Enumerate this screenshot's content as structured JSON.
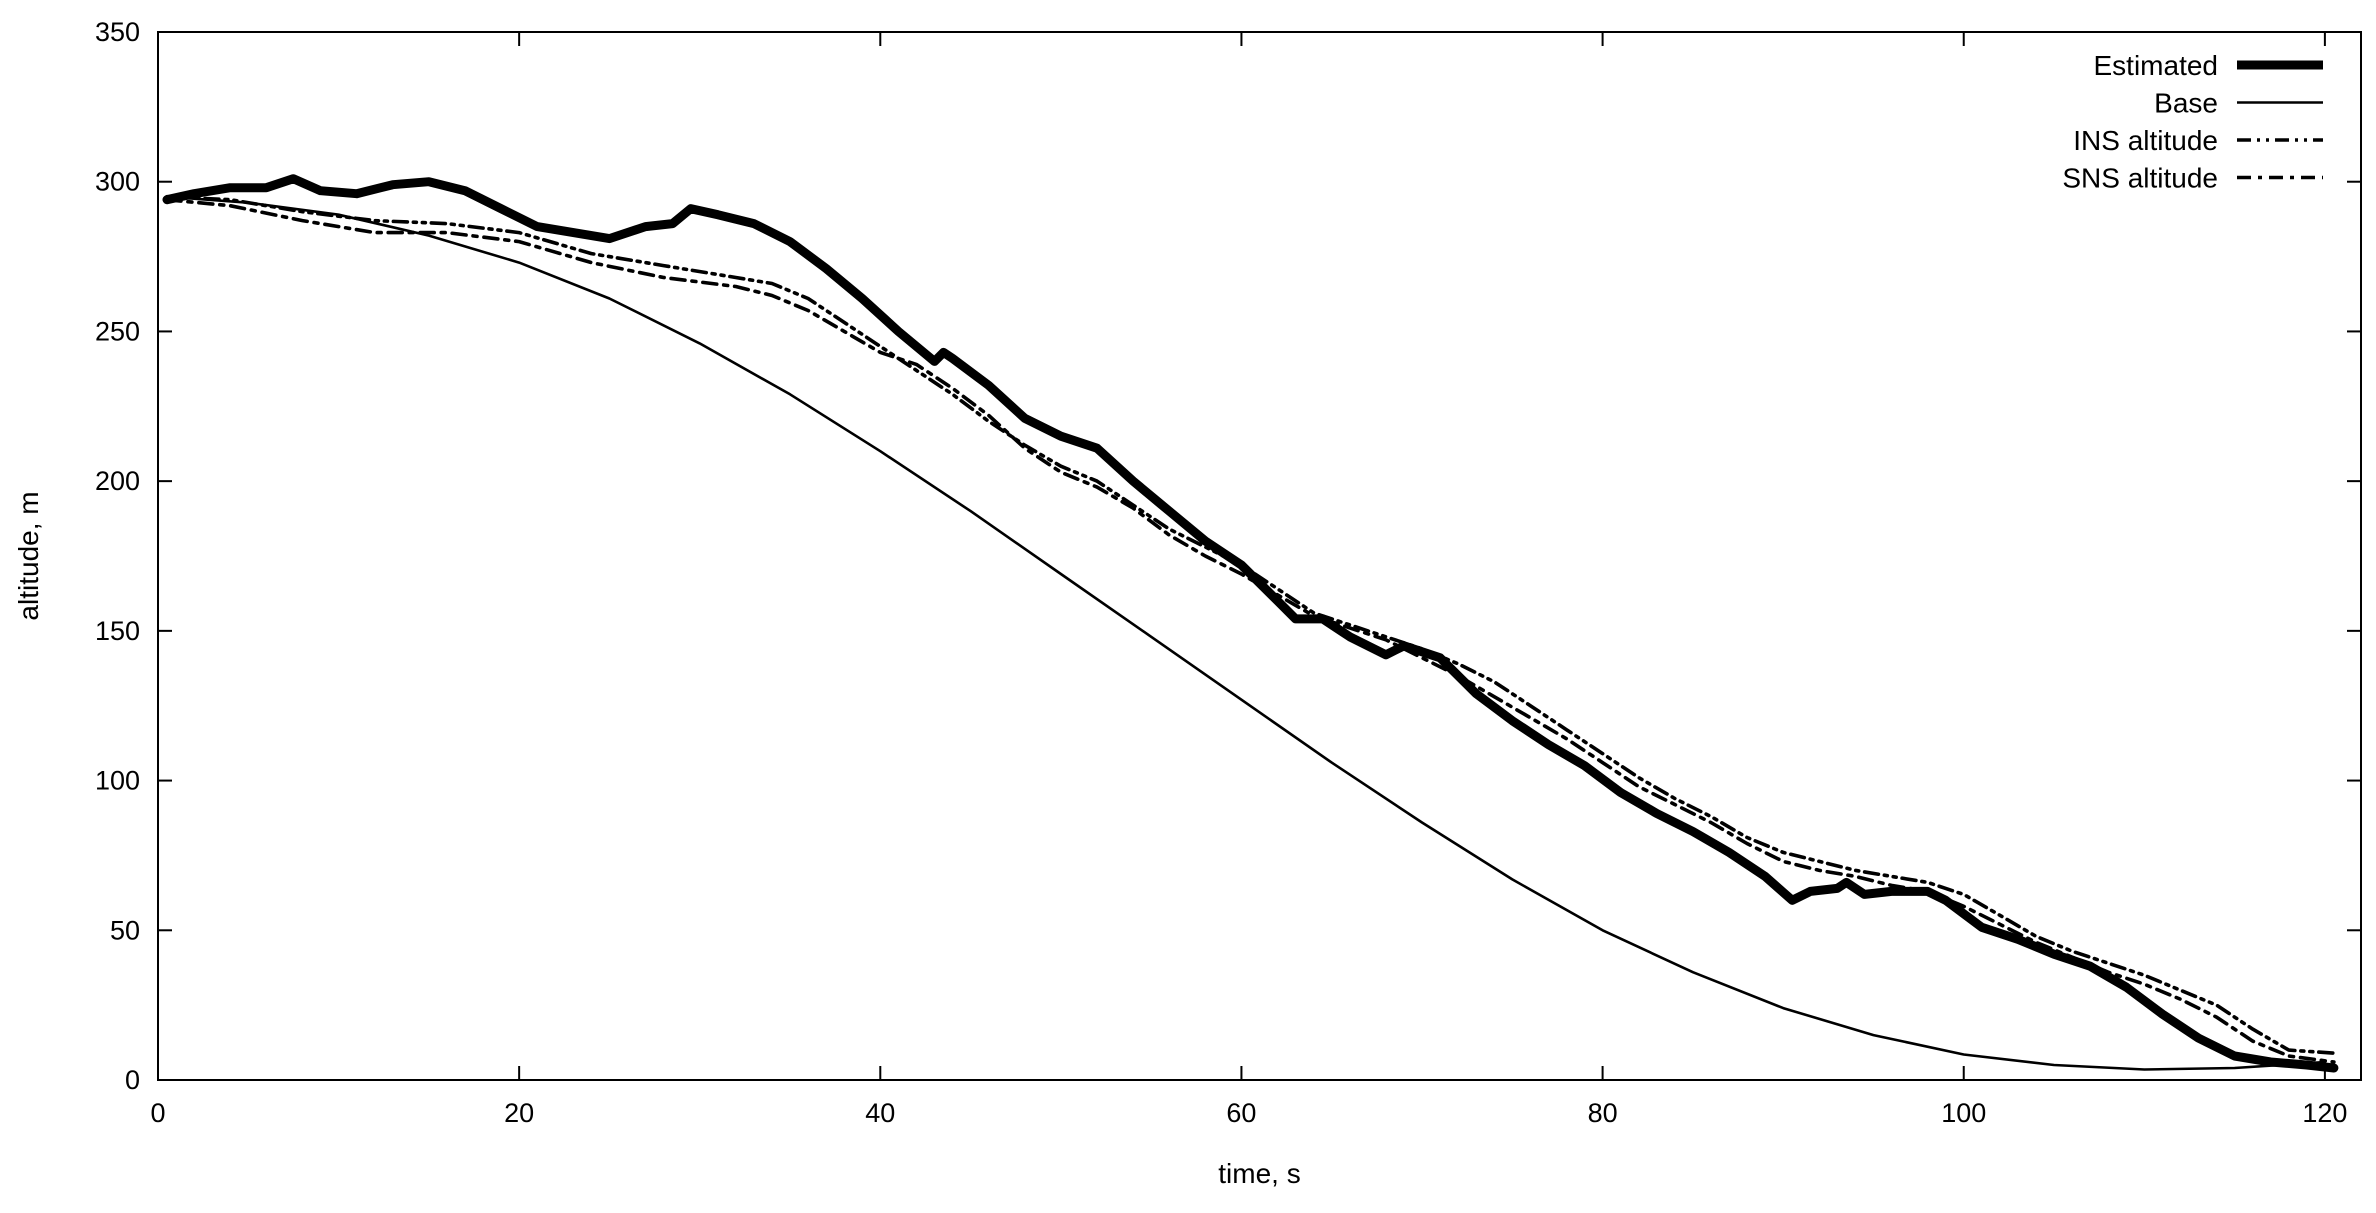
{
  "chart_data": {
    "type": "line",
    "title": "",
    "xlabel": "time, s",
    "ylabel": "altitude, m",
    "xlim": [
      0,
      122
    ],
    "ylim": [
      0,
      350
    ],
    "xticks": [
      0,
      20,
      40,
      60,
      80,
      100,
      120
    ],
    "yticks": [
      0,
      50,
      100,
      150,
      200,
      250,
      300,
      350
    ],
    "grid": false,
    "legend_position": "top-right",
    "series": [
      {
        "name": "Estimated",
        "style": "thick-solid",
        "color": "#000000",
        "x": [
          0.5,
          2,
          4,
          6,
          7.5,
          9,
          11,
          13,
          15,
          17,
          19,
          21,
          23,
          25,
          27,
          28.5,
          29.5,
          31,
          33,
          35,
          37,
          39,
          41,
          43,
          43.5,
          44,
          46,
          48,
          50,
          52,
          54,
          56,
          58,
          60,
          62,
          63,
          64.5,
          66,
          68,
          69,
          71,
          73,
          75,
          77,
          79,
          81,
          83,
          85,
          87,
          89,
          90.5,
          91.5,
          93,
          93.5,
          94.5,
          96,
          98,
          99,
          101,
          103,
          105,
          107,
          109,
          111,
          113,
          115,
          117,
          119,
          120.5
        ],
        "y": [
          294,
          296,
          298,
          298,
          301,
          297,
          296,
          299,
          300,
          297,
          291,
          285,
          283,
          281,
          285,
          286,
          291,
          289,
          286,
          280,
          271,
          261,
          250,
          240,
          243,
          241,
          232,
          221,
          215,
          211,
          200,
          190,
          180,
          172,
          160,
          154,
          154,
          148,
          142,
          145,
          141,
          129,
          120,
          112,
          105,
          96,
          89,
          83,
          76,
          68,
          60,
          63,
          64,
          66,
          62,
          63,
          63,
          60,
          51,
          47,
          42,
          38,
          31,
          22,
          14,
          8,
          6,
          5,
          4
        ]
      },
      {
        "name": "Base",
        "style": "thin-solid",
        "color": "#000000",
        "x": [
          0.5,
          5,
          10,
          15,
          20,
          25,
          30,
          35,
          40,
          45,
          50,
          55,
          60,
          65,
          70,
          75,
          80,
          85,
          90,
          95,
          100,
          105,
          110,
          115,
          120
        ],
        "y": [
          295,
          293,
          289,
          282,
          273,
          261,
          246,
          229,
          210,
          190,
          169,
          148,
          127,
          106,
          86,
          67,
          50,
          36,
          24,
          15,
          8.5,
          5,
          3.5,
          4,
          6
        ]
      },
      {
        "name": "INS altitude",
        "style": "dash-dot-dot",
        "color": "#000000",
        "x": [
          0.5,
          4,
          8,
          12,
          16,
          20,
          24,
          28,
          32,
          34,
          36,
          38,
          40,
          42,
          44,
          46,
          48,
          50,
          52,
          54,
          56,
          58,
          60,
          62,
          64,
          66,
          68,
          70,
          72,
          74,
          76,
          78,
          80,
          82,
          84,
          86,
          88,
          90,
          92,
          94,
          96,
          98,
          100,
          102,
          104,
          106,
          108,
          110,
          112,
          114,
          116,
          118,
          120.5
        ],
        "y": [
          295,
          294,
          290,
          287,
          286,
          283,
          276,
          272,
          268,
          266,
          261,
          253,
          245,
          237,
          229,
          220,
          212,
          205,
          200,
          192,
          184,
          178,
          172,
          164,
          156,
          152,
          148,
          144,
          139,
          133,
          125,
          117,
          109,
          101,
          94,
          88,
          81,
          76,
          73,
          70,
          68,
          66,
          62,
          55,
          48,
          43,
          39,
          35,
          30,
          25,
          17,
          10,
          9
        ]
      },
      {
        "name": "SNS altitude",
        "style": "dash-dot",
        "color": "#000000",
        "x": [
          0.5,
          4,
          8,
          12,
          16,
          20,
          24,
          28,
          32,
          34,
          36,
          38,
          40,
          42,
          44,
          46,
          48,
          50,
          52,
          54,
          56,
          58,
          60,
          62,
          64,
          66,
          68,
          70,
          72,
          74,
          76,
          78,
          80,
          82,
          84,
          86,
          88,
          90,
          92,
          94,
          96,
          98,
          100,
          102,
          104,
          106,
          108,
          110,
          112,
          114,
          116,
          118,
          120.5
        ],
        "y": [
          294,
          292,
          287,
          283,
          283,
          280,
          273,
          268,
          265,
          262,
          257,
          250,
          243,
          239,
          231,
          222,
          211,
          203,
          198,
          191,
          182,
          175,
          169,
          162,
          155,
          151,
          147,
          141,
          135,
          128,
          121,
          114,
          106,
          98,
          92,
          86,
          79,
          73,
          70,
          68,
          65,
          63,
          58,
          52,
          46,
          41,
          36,
          32,
          27,
          21,
          13,
          8,
          6
        ]
      }
    ]
  }
}
